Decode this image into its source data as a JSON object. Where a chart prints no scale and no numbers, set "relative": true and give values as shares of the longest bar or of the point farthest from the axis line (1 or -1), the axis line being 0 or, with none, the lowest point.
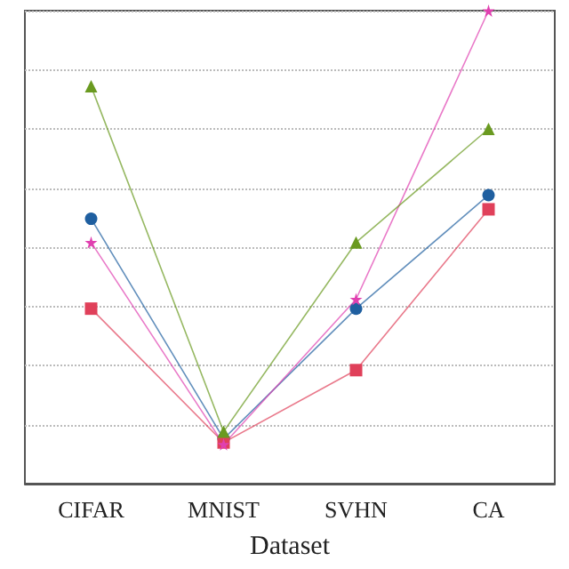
{
  "chart_data": {
    "type": "line",
    "xlabel": "Dataset",
    "categories": [
      "CIFAR",
      "MNIST",
      "SVHN",
      "CA"
    ],
    "relative": true,
    "grid": "y",
    "series": [
      {
        "color": "#1f5fa0",
        "marker": "circle",
        "values": [
          0.56,
          0.095,
          0.37,
          0.61
        ]
      },
      {
        "color": "#e0405a",
        "marker": "square",
        "values": [
          0.37,
          0.087,
          0.24,
          0.58
        ]
      },
      {
        "color": "#e040b0",
        "marker": "star",
        "values": [
          0.51,
          0.083,
          0.39,
          1.0
        ]
      },
      {
        "color": "#6a9a20",
        "marker": "triangle",
        "values": [
          0.84,
          0.11,
          0.51,
          0.75
        ]
      }
    ]
  }
}
